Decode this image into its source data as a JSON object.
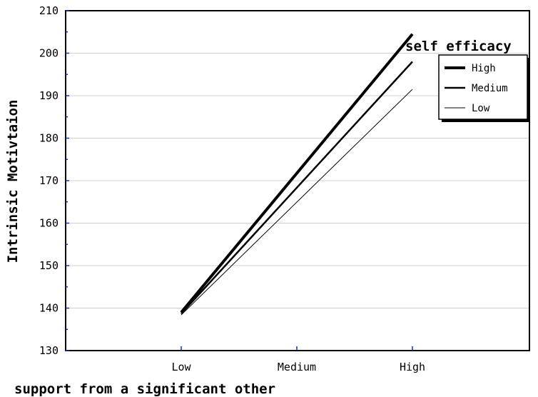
{
  "chart_data": {
    "type": "line",
    "title": "",
    "xlabel": "support from a significant other",
    "ylabel": "Intrinsic Motivtaion",
    "categories": [
      "Low",
      "Medium",
      "High"
    ],
    "ylim": [
      130,
      210
    ],
    "yticks": [
      130,
      140,
      150,
      160,
      170,
      180,
      190,
      200,
      210
    ],
    "grid": "horizontal",
    "legend": {
      "title": "self efficacy",
      "position": "top-right"
    },
    "series": [
      {
        "name": "High",
        "points": [
          {
            "x": "Low",
            "y": 139.0
          },
          {
            "x": "High",
            "y": 204.5
          }
        ],
        "color": "#000000"
      },
      {
        "name": "Medium",
        "points": [
          {
            "x": "Low",
            "y": 138.7
          },
          {
            "x": "High",
            "y": 198.0
          }
        ],
        "color": "#000000"
      },
      {
        "name": "Low",
        "points": [
          {
            "x": "Low",
            "y": 138.4
          },
          {
            "x": "High",
            "y": 191.5
          }
        ],
        "color": "#000000"
      }
    ]
  }
}
